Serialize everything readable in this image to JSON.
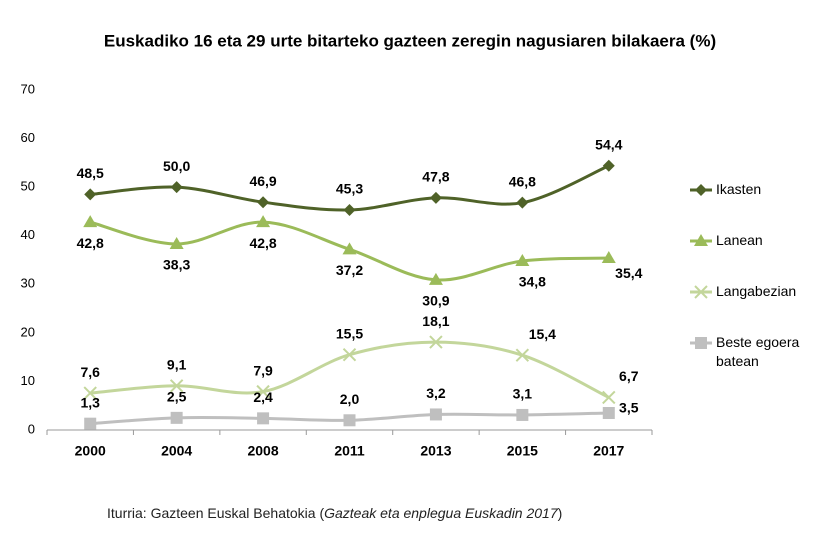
{
  "chart_data": {
    "type": "line",
    "title": "Euskadiko  16 eta 29 urte bitarteko gazteen zeregin nagusiaren bilakaera (%)",
    "categories": [
      "2000",
      "2004",
      "2008",
      "2011",
      "2013",
      "2015",
      "2017"
    ],
    "ylim": [
      0,
      70
    ],
    "yticks": [
      0,
      10,
      20,
      30,
      40,
      50,
      60,
      70
    ],
    "grid": false,
    "legend": "right",
    "series": [
      {
        "name": "Ikasten",
        "color": "#4f6228",
        "marker": "diamond",
        "values": [
          48.5,
          50.0,
          46.9,
          45.3,
          47.8,
          46.8,
          54.4
        ],
        "value_labels": [
          "48,5",
          "50,0",
          "46,9",
          "45,3",
          "47,8",
          "46,8",
          "54,4"
        ]
      },
      {
        "name": "Lanean",
        "color": "#9bbb59",
        "marker": "triangle",
        "values": [
          42.8,
          38.3,
          42.8,
          37.2,
          30.9,
          34.8,
          35.4
        ],
        "value_labels": [
          "42,8",
          "38,3",
          "42,8",
          "37,2",
          "30,9",
          "34,8",
          "35,4"
        ]
      },
      {
        "name": "Langabezian",
        "color": "#c3d69b",
        "marker": "x",
        "values": [
          7.6,
          9.1,
          7.9,
          15.5,
          18.1,
          15.4,
          6.7
        ],
        "value_labels": [
          "7,6",
          "9,1",
          "7,9",
          "15,5",
          "18,1",
          "15,4",
          "6,7"
        ]
      },
      {
        "name": "Beste egoera batean",
        "color": "#bfbfbf",
        "marker": "square",
        "values": [
          1.3,
          2.5,
          2.4,
          2.0,
          3.2,
          3.1,
          3.5
        ],
        "value_labels": [
          "1,3",
          "2,5",
          "2,4",
          "2,0",
          "3,2",
          "3,1",
          "3,5"
        ]
      }
    ],
    "source": {
      "text": "Iturria: Gazteen Euskal Behatokia (",
      "publication": "Gazteak eta enplegua Euskadin 2017",
      "close": ")"
    }
  }
}
